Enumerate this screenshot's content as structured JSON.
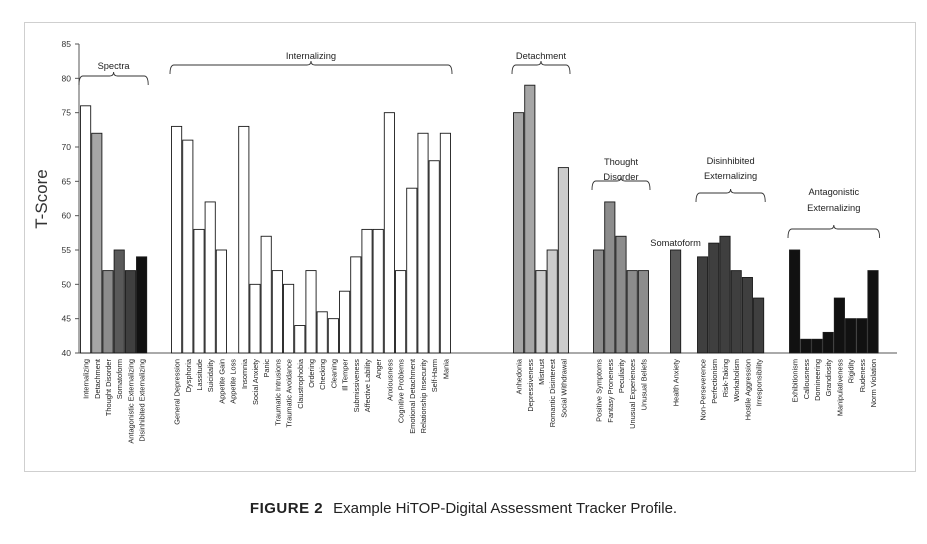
{
  "figure": {
    "label": "FIGURE 2",
    "caption": "Example HiTOP-Digital Assessment Tracker Profile."
  },
  "chart_data": {
    "type": "bar",
    "ylabel": "T-Score",
    "ylim": [
      40,
      85
    ],
    "yticks": [
      40,
      45,
      50,
      55,
      60,
      65,
      70,
      75,
      80,
      85
    ],
    "grid": false,
    "groups": [
      {
        "name": "Spectra",
        "title_lines": [
          "Spectra"
        ],
        "bars": [
          {
            "label": "Internalizing",
            "value": 76,
            "color": "#ffffff"
          },
          {
            "label": "Detachment",
            "value": 72,
            "color": "#a6a6a6"
          },
          {
            "label": "Thought Disorder",
            "value": 52,
            "color": "#8c8c8c"
          },
          {
            "label": "Somatoform",
            "value": 55,
            "color": "#595959"
          },
          {
            "label": "Antagonistic Externalizing",
            "value": 52,
            "color": "#3f3f3f"
          },
          {
            "label": "Disinhibited Externalizing",
            "value": 54,
            "color": "#111111"
          }
        ]
      },
      {
        "name": "Internalizing",
        "title_lines": [
          "Internalizing"
        ],
        "bars": [
          {
            "label": "General Depression",
            "value": 73,
            "color": "#ffffff"
          },
          {
            "label": "Dysphoria",
            "value": 71,
            "color": "#ffffff"
          },
          {
            "label": "Lassitude",
            "value": 58,
            "color": "#ffffff"
          },
          {
            "label": "Suicidality",
            "value": 62,
            "color": "#ffffff"
          },
          {
            "label": "Appetite Gain",
            "value": 55,
            "color": "#ffffff"
          },
          {
            "label": "Appetite Loss",
            "value": 40,
            "color": "#ffffff"
          },
          {
            "label": "Insomnia",
            "value": 73,
            "color": "#ffffff"
          },
          {
            "label": "Social Anxiety",
            "value": 50,
            "color": "#ffffff"
          },
          {
            "label": "Panic",
            "value": 57,
            "color": "#ffffff"
          },
          {
            "label": "Traumatic Intrusions",
            "value": 52,
            "color": "#ffffff"
          },
          {
            "label": "Traumatic Avoidance",
            "value": 50,
            "color": "#ffffff"
          },
          {
            "label": "Claustrophobia",
            "value": 44,
            "color": "#ffffff"
          },
          {
            "label": "Ordering",
            "value": 52,
            "color": "#ffffff"
          },
          {
            "label": "Checking",
            "value": 46,
            "color": "#ffffff"
          },
          {
            "label": "Cleaning",
            "value": 45,
            "color": "#ffffff"
          },
          {
            "label": "Ill Temper",
            "value": 49,
            "color": "#ffffff"
          },
          {
            "label": "Submissiveness",
            "value": 54,
            "color": "#ffffff"
          },
          {
            "label": "Affective Lability",
            "value": 58,
            "color": "#ffffff"
          },
          {
            "label": "Anger",
            "value": 58,
            "color": "#ffffff"
          },
          {
            "label": "Anxiousness",
            "value": 75,
            "color": "#ffffff"
          },
          {
            "label": "Cognitive Problems",
            "value": 52,
            "color": "#ffffff"
          },
          {
            "label": "Emotional Detachment",
            "value": 64,
            "color": "#ffffff"
          },
          {
            "label": "Relationship Insecurity",
            "value": 72,
            "color": "#ffffff"
          },
          {
            "label": "Self-Harm",
            "value": 68,
            "color": "#ffffff"
          },
          {
            "label": "Mania",
            "value": 72,
            "color": "#ffffff"
          }
        ]
      },
      {
        "name": "Detachment",
        "title_lines": [
          "Detachment"
        ],
        "bars": [
          {
            "label": "Anhedonia",
            "value": 75,
            "color": "#a6a6a6"
          },
          {
            "label": "Depressiveness",
            "value": 79,
            "color": "#a6a6a6"
          },
          {
            "label": "Mistrust",
            "value": 52,
            "color": "#cccccc"
          },
          {
            "label": "Romantic Disinterest",
            "value": 55,
            "color": "#cccccc"
          },
          {
            "label": "Social Withdrawal",
            "value": 67,
            "color": "#cccccc"
          }
        ]
      },
      {
        "name": "Thought Disorder",
        "title_lines": [
          "Thought",
          "Disorder"
        ],
        "bars": [
          {
            "label": "Positive Symptoms",
            "value": 55,
            "color": "#8c8c8c"
          },
          {
            "label": "Fantasy Proneness",
            "value": 62,
            "color": "#8c8c8c"
          },
          {
            "label": "Peculiarity",
            "value": 57,
            "color": "#8c8c8c"
          },
          {
            "label": "Unusual Experiences",
            "value": 52,
            "color": "#8c8c8c"
          },
          {
            "label": "Unusual Beliefs",
            "value": 52,
            "color": "#8c8c8c"
          }
        ]
      },
      {
        "name": "Somatoform",
        "title_lines": [
          "Somatoform"
        ],
        "bars": [
          {
            "label": "Health Anxiety",
            "value": 55,
            "color": "#595959"
          }
        ]
      },
      {
        "name": "Disinhibited Externalizing",
        "title_lines": [
          "Disinhibited",
          "Externalizing"
        ],
        "bars": [
          {
            "label": "Non-Perseverence",
            "value": 54,
            "color": "#3f3f3f"
          },
          {
            "label": "Perfectionism",
            "value": 56,
            "color": "#3f3f3f"
          },
          {
            "label": "Risk-Taking",
            "value": 57,
            "color": "#3f3f3f"
          },
          {
            "label": "Workaholism",
            "value": 52,
            "color": "#3f3f3f"
          },
          {
            "label": "Hostile Aggression",
            "value": 51,
            "color": "#3f3f3f"
          },
          {
            "label": "Irresponsibility",
            "value": 48,
            "color": "#3f3f3f"
          }
        ]
      },
      {
        "name": "Antagonistic Externalizing",
        "title_lines": [
          "Antagonistic",
          "Externalizing"
        ],
        "bars": [
          {
            "label": "Exhibitionism",
            "value": 55,
            "color": "#111111"
          },
          {
            "label": "Callousness",
            "value": 42,
            "color": "#111111"
          },
          {
            "label": "Domineering",
            "value": 42,
            "color": "#111111"
          },
          {
            "label": "Grandiosity",
            "value": 43,
            "color": "#111111"
          },
          {
            "label": "Manipulativeness",
            "value": 48,
            "color": "#111111"
          },
          {
            "label": "Rigidity",
            "value": 45,
            "color": "#111111"
          },
          {
            "label": "Rudeness",
            "value": 45,
            "color": "#111111"
          },
          {
            "label": "Norm Violation",
            "value": 52,
            "color": "#111111"
          }
        ]
      }
    ]
  }
}
